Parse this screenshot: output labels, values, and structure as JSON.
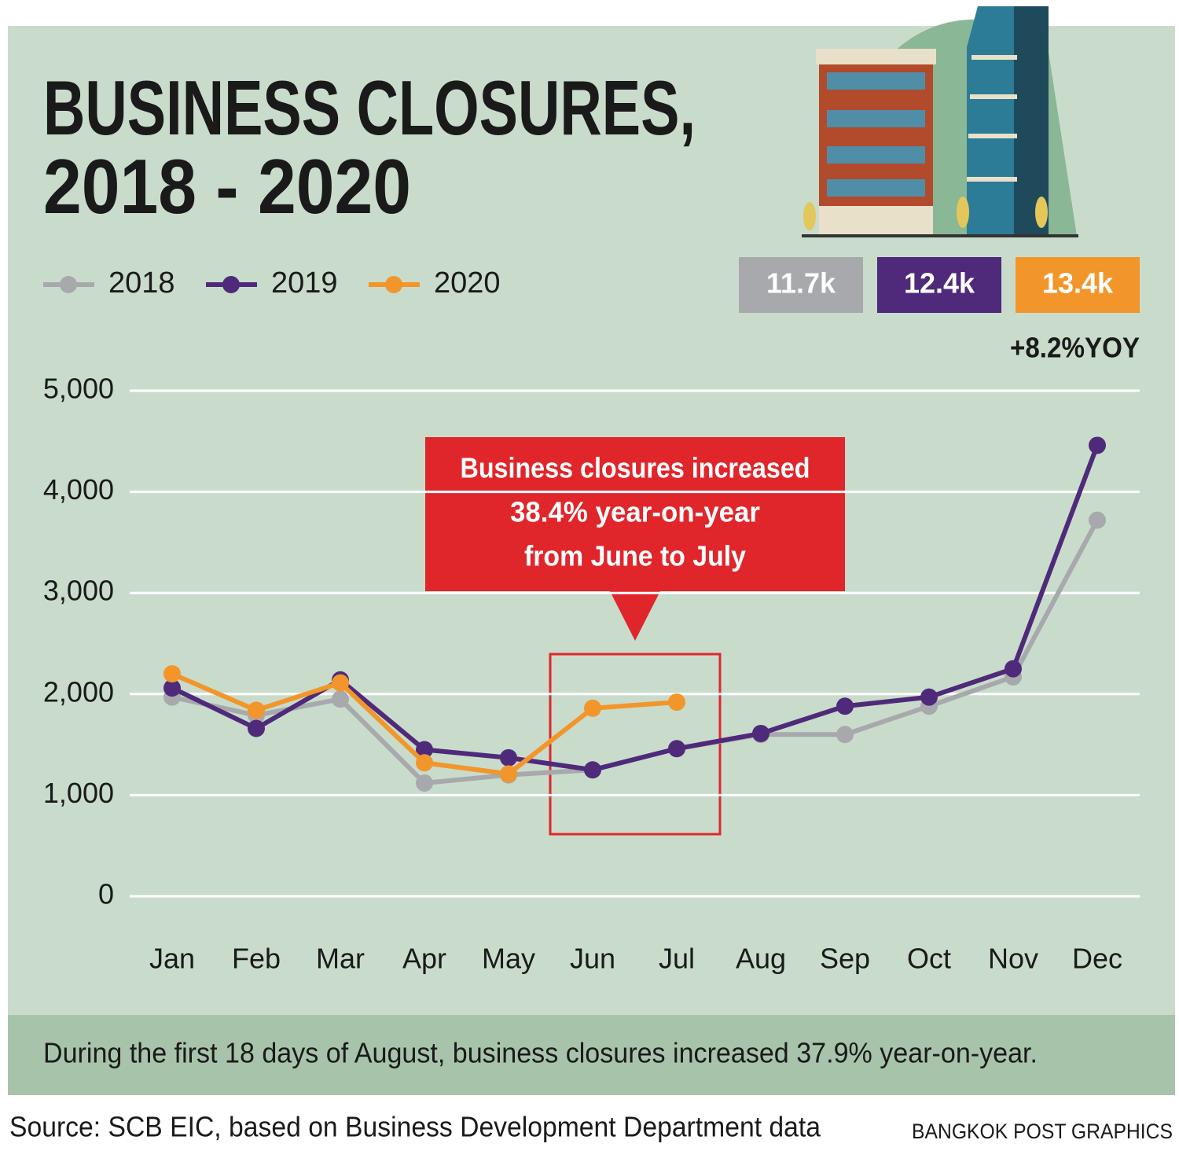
{
  "chart_data": {
    "type": "line",
    "title": [
      "BUSINESS CLOSURES,",
      "2018 - 2020"
    ],
    "categories": [
      "Jan",
      "Feb",
      "Mar",
      "Apr",
      "May",
      "Jun",
      "Jul",
      "Aug",
      "Sep",
      "Oct",
      "Nov",
      "Dec"
    ],
    "series": [
      {
        "name": "2018",
        "color": "#a7a9ac",
        "values": [
          1970,
          1790,
          1950,
          1120,
          1200,
          1250,
          1460,
          1600,
          1600,
          1880,
          2170,
          3720
        ]
      },
      {
        "name": "2019",
        "color": "#4f2a7a",
        "values": [
          2060,
          1660,
          2140,
          1450,
          1370,
          1250,
          1460,
          1610,
          1880,
          1970,
          2250,
          4460
        ]
      },
      {
        "name": "2020",
        "color": "#f2962c",
        "values": [
          2200,
          1840,
          2110,
          1320,
          1210,
          1860,
          1920,
          null,
          null,
          null,
          null,
          null
        ]
      }
    ],
    "ylim": [
      0,
      5000
    ],
    "yticks": [
      0,
      {
        "value": 1000,
        "label": "1,000"
      },
      {
        "value": 2000,
        "label": "2,000"
      },
      {
        "value": 3000,
        "label": "3,000"
      },
      {
        "value": 4000,
        "label": "4,000"
      },
      {
        "value": 5000,
        "label": "5,000"
      }
    ],
    "grid": true,
    "totals": [
      {
        "label": "11.7k",
        "color": "#a7a9ac"
      },
      {
        "label": "12.4k",
        "color": "#4f2a7a"
      },
      {
        "label": "13.4k",
        "color": "#f2962c"
      }
    ],
    "totals_note": "+8.2%YOY",
    "annotation": [
      "Business closures increased",
      "38.4% year-on-year",
      "from June to July"
    ],
    "footnote": "During the first 18 days of August, business closures increased 37.9% year-on-year.",
    "source": "Source: SCB EIC, based on Business Development Department data",
    "credit": "BANGKOK POST GRAPHICS"
  }
}
